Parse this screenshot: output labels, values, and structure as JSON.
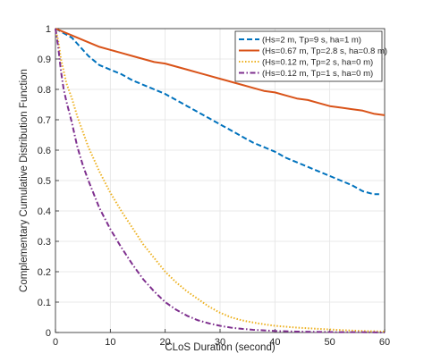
{
  "chart_data": {
    "type": "line",
    "title": "",
    "xlabel": "CLoS Duration (second)",
    "ylabel": "Complementary Cumulative Distribution Function",
    "xlim": [
      0,
      60
    ],
    "ylim": [
      0,
      1
    ],
    "xticks": [
      0,
      10,
      20,
      30,
      40,
      50,
      60
    ],
    "yticks": [
      0,
      0.1,
      0.2,
      0.3,
      0.4,
      0.5,
      0.6,
      0.7,
      0.8,
      0.9,
      1
    ],
    "grid": true,
    "legend_position": "top-right",
    "series": [
      {
        "name": "(Hs=2 m, Tp=9 s, ha=1 m)",
        "color": "#0072BD",
        "dash": "dashed",
        "x": [
          0,
          1,
          2,
          3,
          4,
          5,
          6,
          7,
          8,
          10,
          12,
          14,
          16,
          18,
          20,
          22,
          24,
          26,
          28,
          30,
          32,
          34,
          36,
          38,
          40,
          42,
          44,
          46,
          48,
          50,
          52,
          54,
          56,
          58,
          59
        ],
        "y": [
          1.0,
          0.99,
          0.98,
          0.97,
          0.95,
          0.93,
          0.91,
          0.895,
          0.88,
          0.865,
          0.85,
          0.83,
          0.815,
          0.8,
          0.785,
          0.765,
          0.745,
          0.725,
          0.705,
          0.685,
          0.665,
          0.645,
          0.625,
          0.61,
          0.595,
          0.575,
          0.56,
          0.545,
          0.53,
          0.515,
          0.5,
          0.485,
          0.465,
          0.455,
          0.455
        ]
      },
      {
        "name": "(Hs=0.67 m, Tp=2.8 s, ha=0.8 m)",
        "color": "#D95319",
        "dash": "solid",
        "x": [
          0,
          2,
          4,
          6,
          8,
          10,
          12,
          14,
          16,
          18,
          20,
          22,
          24,
          26,
          28,
          30,
          32,
          34,
          36,
          38,
          40,
          42,
          44,
          46,
          48,
          50,
          52,
          54,
          56,
          58,
          60
        ],
        "y": [
          1.0,
          0.985,
          0.97,
          0.955,
          0.94,
          0.93,
          0.92,
          0.91,
          0.9,
          0.89,
          0.885,
          0.875,
          0.865,
          0.855,
          0.845,
          0.835,
          0.825,
          0.815,
          0.805,
          0.795,
          0.79,
          0.78,
          0.77,
          0.765,
          0.755,
          0.745,
          0.74,
          0.735,
          0.73,
          0.72,
          0.715
        ]
      },
      {
        "name": "(Hs=0.12 m, Tp=2 s, ha=0 m)",
        "color": "#EDB120",
        "dash": "dotted",
        "x": [
          0,
          0.5,
          1,
          1.5,
          2,
          3,
          4,
          5,
          6,
          8,
          10,
          12,
          14,
          16,
          18,
          20,
          22,
          24,
          26,
          28,
          30,
          32,
          34,
          36,
          38,
          40,
          44,
          48,
          52,
          56,
          60
        ],
        "y": [
          1.0,
          0.96,
          0.9,
          0.86,
          0.82,
          0.77,
          0.71,
          0.66,
          0.61,
          0.53,
          0.46,
          0.4,
          0.345,
          0.29,
          0.245,
          0.2,
          0.165,
          0.135,
          0.11,
          0.085,
          0.065,
          0.05,
          0.04,
          0.033,
          0.027,
          0.022,
          0.016,
          0.012,
          0.008,
          0.005,
          0.003
        ]
      },
      {
        "name": "(Hs=0.12 m, Tp=1 s, ha=0 m)",
        "color": "#7E2F8E",
        "dash": "dashdot",
        "x": [
          0,
          0.5,
          1,
          1.5,
          2,
          3,
          4,
          5,
          6,
          8,
          10,
          12,
          14,
          16,
          18,
          20,
          22,
          24,
          26,
          28,
          30,
          32,
          34,
          36,
          38,
          40,
          44,
          48,
          52,
          56,
          60
        ],
        "y": [
          1.0,
          0.94,
          0.86,
          0.8,
          0.76,
          0.69,
          0.61,
          0.55,
          0.5,
          0.41,
          0.34,
          0.28,
          0.225,
          0.175,
          0.135,
          0.1,
          0.075,
          0.055,
          0.04,
          0.03,
          0.022,
          0.016,
          0.012,
          0.009,
          0.007,
          0.005,
          0.003,
          0.002,
          0.001,
          0.001,
          0.0
        ]
      }
    ]
  }
}
